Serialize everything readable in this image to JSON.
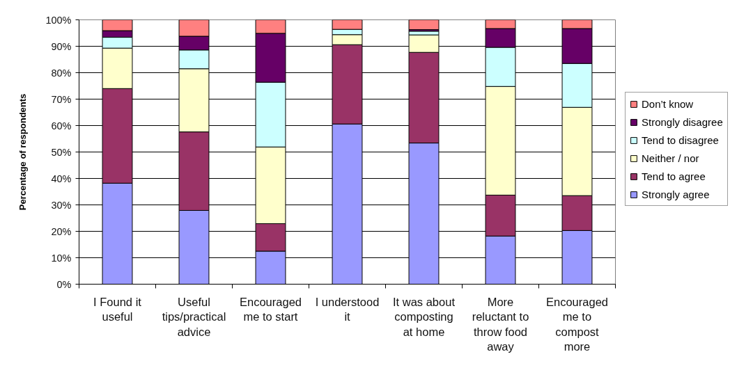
{
  "chart_data": {
    "type": "bar",
    "stacked": true,
    "ylabel": "Percentage of respondents",
    "categories": [
      "I Found it useful",
      "Useful tips/practical advice",
      "Encouraged me to start",
      "I understood it",
      "It was about composting at home",
      "More reluctant to throw food away",
      "Encouraged me to compost more"
    ],
    "series": [
      {
        "name": "Strongly agree",
        "color": "#9999ff",
        "values": [
          38.2,
          27.9,
          12.5,
          60.6,
          53.4,
          18.2,
          20.3
        ]
      },
      {
        "name": "Tend to agree",
        "color": "#993366",
        "values": [
          35.8,
          29.7,
          10.4,
          30.0,
          34.3,
          15.5,
          13.2
        ]
      },
      {
        "name": "Neither / nor",
        "color": "#ffffcc",
        "values": [
          15.3,
          23.9,
          29.0,
          3.8,
          6.6,
          41.1,
          33.4
        ]
      },
      {
        "name": "Tend to disagree",
        "color": "#ccffff",
        "values": [
          4.1,
          7.1,
          24.5,
          2.0,
          1.4,
          14.8,
          16.6
        ]
      },
      {
        "name": "Strongly disagree",
        "color": "#660066",
        "values": [
          2.5,
          5.2,
          18.5,
          0,
          0.6,
          7.1,
          13.2
        ]
      },
      {
        "name": "Don’t know",
        "color": "#ff8080",
        "values": [
          4.1,
          6.2,
          5.1,
          3.6,
          3.7,
          3.3,
          3.3
        ]
      }
    ],
    "ylim": [
      0,
      100
    ],
    "yticks": [
      {
        "value": 0,
        "label": "0%"
      },
      {
        "value": 10,
        "label": "10%"
      },
      {
        "value": 20,
        "label": "20%"
      },
      {
        "value": 30,
        "label": "30%"
      },
      {
        "value": 40,
        "label": "40%"
      },
      {
        "value": 50,
        "label": "50%"
      },
      {
        "value": 60,
        "label": "60%"
      },
      {
        "value": 70,
        "label": "70%"
      },
      {
        "value": 80,
        "label": "80%"
      },
      {
        "value": 90,
        "label": "90%"
      },
      {
        "value": 100,
        "label": "100%"
      }
    ],
    "grid": "y",
    "legend": "right"
  }
}
